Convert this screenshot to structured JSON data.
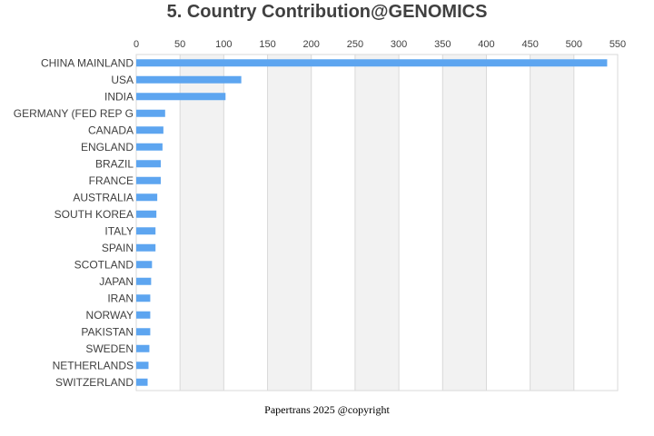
{
  "chart_data": {
    "type": "bar",
    "orientation": "horizontal",
    "title": "5. Country Contribution@GENOMICS",
    "xlabel": "",
    "ylabel": "",
    "xlim": [
      0,
      550
    ],
    "x_ticks": [
      0,
      50,
      100,
      150,
      200,
      250,
      300,
      350,
      400,
      450,
      500,
      550
    ],
    "x_axis_position": "top",
    "categories": [
      "CHINA MAINLAND",
      "USA",
      "INDIA",
      "GERMANY (FED REP G",
      "CANADA",
      "ENGLAND",
      "BRAZIL",
      "FRANCE",
      "AUSTRALIA",
      "SOUTH KOREA",
      "ITALY",
      "SPAIN",
      "SCOTLAND",
      "JAPAN",
      "IRAN",
      "NORWAY",
      "PAKISTAN",
      "SWEDEN",
      "NETHERLANDS",
      "SWITZERLAND"
    ],
    "values": [
      538,
      120,
      102,
      33,
      31,
      30,
      28,
      28,
      24,
      23,
      22,
      22,
      18,
      17,
      16,
      16,
      16,
      15,
      14,
      13
    ],
    "bar_color": "#5da5f0",
    "band_color": "#f2f2f2",
    "grid": true
  },
  "footer": "Papertrans 2025 @copyright"
}
